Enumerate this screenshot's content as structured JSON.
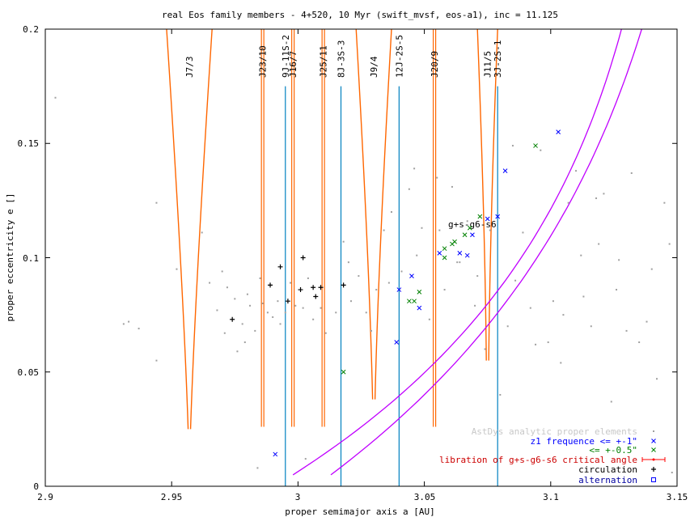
{
  "chart_data": {
    "type": "scatter",
    "title": "real Eos family members - 4+520, 10 Myr (swift_mvsf, eos-a1), inc = 11.125",
    "xlabel": "proper semimajor axis a [AU]",
    "ylabel": "proper eccentricity e []",
    "xlim": [
      2.9,
      3.15
    ],
    "ylim": [
      0,
      0.2
    ],
    "xticks": [
      "2.9",
      "2.95",
      "3",
      "3.05",
      "3.1",
      "3.15"
    ],
    "yticks": [
      "0",
      "0.05",
      "0.1",
      "0.15",
      "0.2"
    ],
    "curve_label": "g+s-g6-s6",
    "colors": {
      "grey": "#a0a0a0",
      "blue": "#0000ff",
      "green": "#008000",
      "red": "#ff0000",
      "black": "#000000",
      "orange": "#ff6600",
      "cyan": "#0080c0",
      "magenta": "#c000ff",
      "alternation_text": "#0000a0",
      "z1_text": "#0000ff",
      "green_text": "#008000",
      "red_text": "#cc0000",
      "grey_text": "#c8c8c8"
    },
    "resonances": [
      {
        "label": "J7/3",
        "a": 2.957,
        "kind": "wedge",
        "bottom": 0.025,
        "halfwidth": 0.009
      },
      {
        "label": "J23/10",
        "a": 2.986,
        "kind": "line",
        "bottom": 0.026
      },
      {
        "label": "9J-11S-2",
        "a": 2.995,
        "kind": "three-body"
      },
      {
        "label": "J16/7",
        "a": 2.998,
        "kind": "line",
        "bottom": 0.026
      },
      {
        "label": "J25/11",
        "a": 3.01,
        "kind": "line",
        "bottom": 0.026
      },
      {
        "label": "8J-3S-3",
        "a": 3.017,
        "kind": "three-body"
      },
      {
        "label": "J9/4",
        "a": 3.03,
        "kind": "wedge",
        "bottom": 0.038,
        "halfwidth": 0.007
      },
      {
        "label": "12J-2S-5",
        "a": 3.04,
        "kind": "three-body"
      },
      {
        "label": "J20/9",
        "a": 3.054,
        "kind": "line",
        "bottom": 0.026
      },
      {
        "label": "J11/5",
        "a": 3.075,
        "kind": "wedge",
        "bottom": 0.055,
        "halfwidth": 0.004
      },
      {
        "label": "3J-2S-1",
        "a": 3.079,
        "kind": "three-body"
      }
    ],
    "series": [
      {
        "name": "AstDys analytic proper elements",
        "marker": "dot",
        "points": [
          [
            2.904,
            0.17
          ],
          [
            2.931,
            0.071
          ],
          [
            2.933,
            0.072
          ],
          [
            2.937,
            0.069
          ],
          [
            2.944,
            0.124
          ],
          [
            2.944,
            0.055
          ],
          [
            2.952,
            0.095
          ],
          [
            2.962,
            0.111
          ],
          [
            2.965,
            0.089
          ],
          [
            2.968,
            0.077
          ],
          [
            2.97,
            0.094
          ],
          [
            2.971,
            0.067
          ],
          [
            2.972,
            0.087
          ],
          [
            2.975,
            0.082
          ],
          [
            2.976,
            0.059
          ],
          [
            2.978,
            0.071
          ],
          [
            2.979,
            0.063
          ],
          [
            2.98,
            0.084
          ],
          [
            2.981,
            0.079
          ],
          [
            2.983,
            0.068
          ],
          [
            2.985,
            0.091
          ],
          [
            2.986,
            0.08
          ],
          [
            2.988,
            0.076
          ],
          [
            2.99,
            0.074
          ],
          [
            2.992,
            0.081
          ],
          [
            2.993,
            0.071
          ],
          [
            2.995,
            0.076
          ],
          [
            2.997,
            0.089
          ],
          [
            2.999,
            0.079
          ],
          [
            3.002,
            0.078
          ],
          [
            3.004,
            0.091
          ],
          [
            3.006,
            0.073
          ],
          [
            3.009,
            0.078
          ],
          [
            3.011,
            0.067
          ],
          [
            3.015,
            0.076
          ],
          [
            3.018,
            0.107
          ],
          [
            3.021,
            0.081
          ],
          [
            3.024,
            0.092
          ],
          [
            3.027,
            0.076
          ],
          [
            3.031,
            0.086
          ],
          [
            3.034,
            0.112
          ],
          [
            3.037,
            0.12
          ],
          [
            3.041,
            0.094
          ],
          [
            3.044,
            0.13
          ],
          [
            3.047,
            0.101
          ],
          [
            3.049,
            0.113
          ],
          [
            3.052,
            0.073
          ],
          [
            3.055,
            0.135
          ],
          [
            3.058,
            0.086
          ],
          [
            3.061,
            0.131
          ],
          [
            3.064,
            0.098
          ],
          [
            3.067,
            0.116
          ],
          [
            3.07,
            0.079
          ],
          [
            3.074,
            0.06
          ],
          [
            3.076,
            0.112
          ],
          [
            3.08,
            0.04
          ],
          [
            3.083,
            0.07
          ],
          [
            3.086,
            0.09
          ],
          [
            3.089,
            0.111
          ],
          [
            3.092,
            0.078
          ],
          [
            3.096,
            0.147
          ],
          [
            3.099,
            0.063
          ],
          [
            3.101,
            0.081
          ],
          [
            3.104,
            0.054
          ],
          [
            3.107,
            0.124
          ],
          [
            3.11,
            0.138
          ],
          [
            3.113,
            0.083
          ],
          [
            3.116,
            0.07
          ],
          [
            3.119,
            0.106
          ],
          [
            3.121,
            0.128
          ],
          [
            3.124,
            0.037
          ],
          [
            3.127,
            0.099
          ],
          [
            3.13,
            0.068
          ],
          [
            3.132,
            0.137
          ],
          [
            3.135,
            0.063
          ],
          [
            3.138,
            0.072
          ],
          [
            3.14,
            0.095
          ],
          [
            3.142,
            0.047
          ],
          [
            3.145,
            0.124
          ],
          [
            3.147,
            0.106
          ],
          [
            3.148,
            0.006
          ],
          [
            2.984,
            0.008
          ],
          [
            3.003,
            0.012
          ],
          [
            3.02,
            0.098
          ],
          [
            3.029,
            0.068
          ],
          [
            3.036,
            0.089
          ],
          [
            3.046,
            0.139
          ],
          [
            3.056,
            0.112
          ],
          [
            3.063,
            0.098
          ],
          [
            3.071,
            0.092
          ],
          [
            3.085,
            0.149
          ],
          [
            3.094,
            0.062
          ],
          [
            3.105,
            0.075
          ],
          [
            3.112,
            0.101
          ],
          [
            3.118,
            0.126
          ],
          [
            3.126,
            0.086
          ]
        ]
      },
      {
        "name": "z1 frequence <= +-1\"",
        "marker": "x",
        "points": [
          [
            2.991,
            0.014
          ],
          [
            3.039,
            0.063
          ],
          [
            3.04,
            0.086
          ],
          [
            3.045,
            0.092
          ],
          [
            3.048,
            0.078
          ],
          [
            3.056,
            0.102
          ],
          [
            3.064,
            0.102
          ],
          [
            3.067,
            0.101
          ],
          [
            3.069,
            0.11
          ],
          [
            3.075,
            0.117
          ],
          [
            3.079,
            0.118
          ],
          [
            3.082,
            0.138
          ],
          [
            3.103,
            0.155
          ]
        ]
      },
      {
        "name": "<= +-0.5\"",
        "marker": "x",
        "points": [
          [
            3.018,
            0.05
          ],
          [
            3.044,
            0.081
          ],
          [
            3.046,
            0.081
          ],
          [
            3.048,
            0.085
          ],
          [
            3.058,
            0.1
          ],
          [
            3.058,
            0.104
          ],
          [
            3.061,
            0.106
          ],
          [
            3.062,
            0.107
          ],
          [
            3.066,
            0.11
          ],
          [
            3.068,
            0.113
          ],
          [
            3.072,
            0.118
          ],
          [
            3.094,
            0.149
          ]
        ]
      },
      {
        "name": "libration of g+s-g6-s6 critical angle",
        "marker": "errorbar",
        "points": []
      },
      {
        "name": "circulation",
        "marker": "plus",
        "points": [
          [
            2.974,
            0.073
          ],
          [
            2.989,
            0.088
          ],
          [
            2.993,
            0.096
          ],
          [
            2.996,
            0.081
          ],
          [
            3.001,
            0.086
          ],
          [
            3.002,
            0.1
          ],
          [
            3.006,
            0.087
          ],
          [
            3.007,
            0.083
          ],
          [
            3.009,
            0.087
          ],
          [
            3.018,
            0.088
          ]
        ]
      },
      {
        "name": "alternation",
        "marker": "square",
        "points": []
      }
    ]
  }
}
